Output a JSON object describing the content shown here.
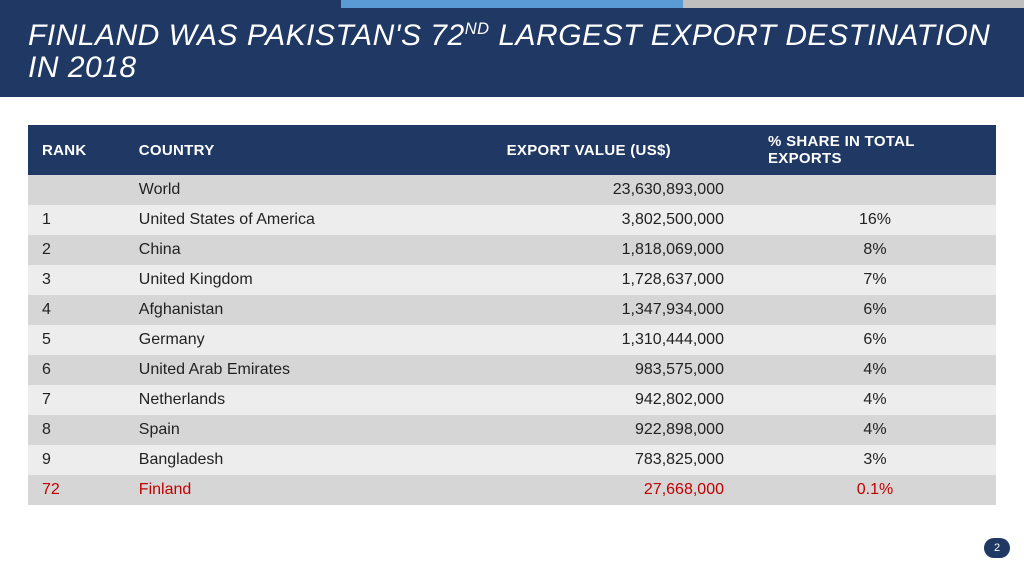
{
  "colors": {
    "stripe1": "#1f3864",
    "stripe2": "#5b9bd5",
    "stripe3": "#bfbfbf",
    "titleBg": "#1f3864",
    "headerBg": "#1f3864",
    "rowA": "#ededed",
    "rowB": "#d6d6d6",
    "text": "#222222",
    "highlight": "#c00000",
    "pageBadge": "#1f3864"
  },
  "title": {
    "pre": "FINLAND WAS PAKISTAN'S 72",
    "sup": "ND",
    "post": " LARGEST EXPORT DESTINATION IN 2018",
    "fontsize": 30
  },
  "table": {
    "columns": [
      "RANK",
      "COUNTRY",
      "EXPORT  VALUE (US$)",
      "% SHARE IN TOTAL EXPORTS"
    ],
    "rows": [
      {
        "rank": "",
        "country": "World",
        "value": "23,630,893,000",
        "share": "",
        "hl": false
      },
      {
        "rank": "1",
        "country": "United States of America",
        "value": "3,802,500,000",
        "share": "16%",
        "hl": false
      },
      {
        "rank": "2",
        "country": "China",
        "value": "1,818,069,000",
        "share": "8%",
        "hl": false
      },
      {
        "rank": "3",
        "country": "United Kingdom",
        "value": "1,728,637,000",
        "share": "7%",
        "hl": false
      },
      {
        "rank": "4",
        "country": "Afghanistan",
        "value": "1,347,934,000",
        "share": "6%",
        "hl": false
      },
      {
        "rank": "5",
        "country": "Germany",
        "value": "1,310,444,000",
        "share": "6%",
        "hl": false
      },
      {
        "rank": "6",
        "country": "United Arab Emirates",
        "value": "983,575,000",
        "share": "4%",
        "hl": false
      },
      {
        "rank": "7",
        "country": "Netherlands",
        "value": "942,802,000",
        "share": "4%",
        "hl": false
      },
      {
        "rank": "8",
        "country": "Spain",
        "value": "922,898,000",
        "share": "4%",
        "hl": false
      },
      {
        "rank": "9",
        "country": "Bangladesh",
        "value": "783,825,000",
        "share": "3%",
        "hl": false
      },
      {
        "rank": "72",
        "country": "Finland",
        "value": "27,668,000",
        "share": "0.1%",
        "hl": true
      }
    ]
  },
  "pageNumber": "2"
}
